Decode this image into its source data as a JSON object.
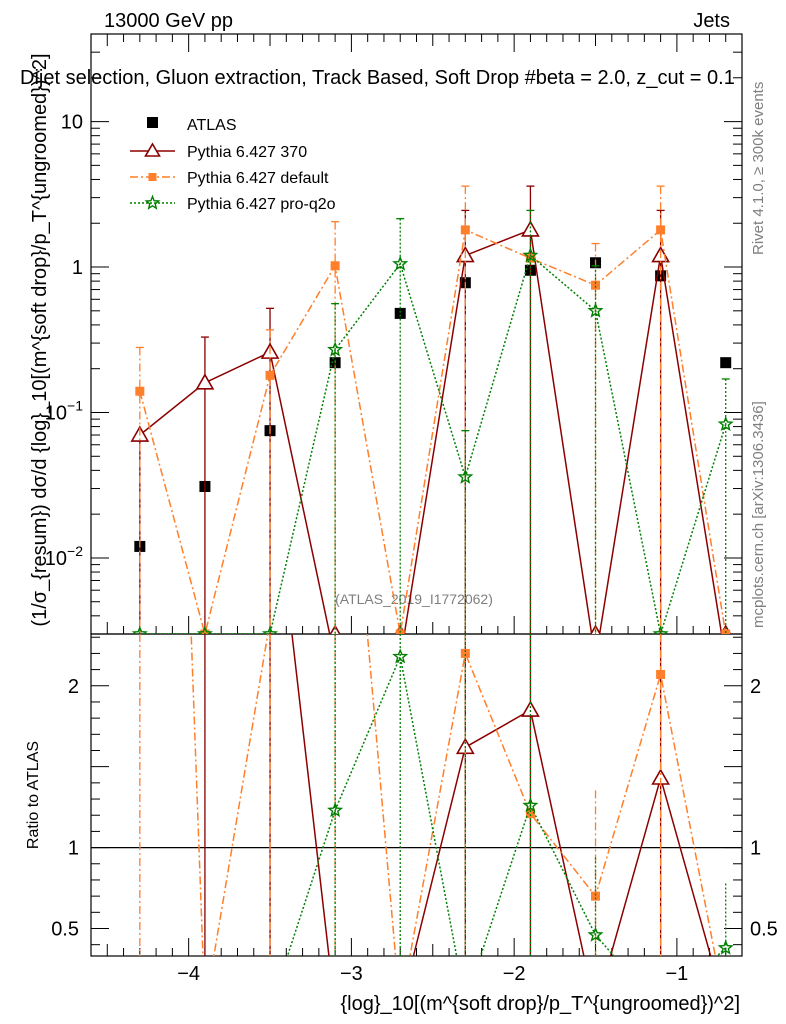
{
  "header": {
    "energy_label": "13000 GeV pp",
    "process_label": "Jets",
    "title": "Dijet selection, Gluon extraction, Track Based, Soft Drop #beta = 2.0, z_cut = 0.1",
    "watermark_analysis": "(ATLAS_2019_I1772062)",
    "side_rivet": "Rivet 4.1.0, ≥ 300k events",
    "side_mcplots": "mcplots.cern.ch [arXiv:1306.3436]"
  },
  "colors": {
    "atlas": "#000000",
    "p370": "#8b0000",
    "pdefault": "#ff7f2a",
    "pq2o": "#008000",
    "gray": "#7f7f7f"
  },
  "chart_data": {
    "type": "scatter",
    "xlabel": "{log}_10[(m^{soft drop}/p_T^{ungroomed})^2]",
    "ylabel_main": "(1/σ_{resum}) dσ/d {log}_10[(m^{soft drop}/p_T^{ungroomed})^2]",
    "ylabel_ratio": "Ratio to ATLAS",
    "xlim": [
      -4.6,
      -0.6
    ],
    "ylim_main": [
      0.003,
      40
    ],
    "ylim_ratio": [
      0.33,
      2.32
    ],
    "yscale_main": "log",
    "x_ticks": [
      -4,
      -3,
      -2,
      -1
    ],
    "x_tick_labels": [
      "−4",
      "−3",
      "−2",
      "−1"
    ],
    "y_main_ticks": [
      {
        "value": 10,
        "label": "10"
      },
      {
        "value": 1,
        "label": "1"
      },
      {
        "value": 0.1,
        "label": "10^-1"
      },
      {
        "value": 0.01,
        "label": "10^-2"
      }
    ],
    "y_ratio_ticks": [
      {
        "value": 2,
        "label": "2"
      },
      {
        "value": 1,
        "label": "1"
      },
      {
        "value": 0.5,
        "label": "0.5"
      }
    ],
    "x": [
      -4.3,
      -3.9,
      -3.5,
      -3.1,
      -2.7,
      -2.3,
      -1.9,
      -1.5,
      -1.1,
      -0.7
    ],
    "series": [
      {
        "key": "atlas",
        "name": "ATLAS",
        "style": "square-marker",
        "values": [
          0.012,
          0.031,
          0.075,
          0.22,
          0.48,
          0.78,
          0.95,
          1.07,
          0.87,
          0.22
        ]
      },
      {
        "key": "p370",
        "name": "Pythia 6.427 370",
        "style": "solid-open-triangle",
        "values": [
          0.07,
          0.16,
          0.26,
          0.0001,
          0.0001,
          1.2,
          1.8,
          0.0001,
          1.2,
          0.0001
        ],
        "err_up": [
          null,
          0.33,
          0.52,
          null,
          null,
          2.45,
          3.6,
          null,
          2.45,
          null
        ],
        "err_down": [
          0.001,
          0.001,
          0.001,
          null,
          null,
          0.001,
          0.001,
          null,
          0.001,
          null
        ],
        "ratio": [
          5.8,
          5.2,
          3.5,
          0.0001,
          0.0001,
          1.62,
          1.85,
          0.0001,
          1.43,
          0.0001
        ]
      },
      {
        "key": "pdefault",
        "name": "Pythia 6.427 default",
        "style": "dashdot-square",
        "values": [
          0.14,
          0.003,
          0.18,
          1.02,
          0.003,
          1.8,
          1.15,
          0.75,
          1.8,
          0.003
        ],
        "err_up": [
          0.28,
          null,
          0.37,
          2.05,
          null,
          3.6,
          null,
          1.45,
          3.6,
          null
        ],
        "err_down": [
          0.001,
          null,
          0.001,
          0.001,
          null,
          0.001,
          null,
          0.001,
          0.001,
          null
        ],
        "ratio": [
          11.0,
          0.0001,
          2.4,
          4.6,
          0.0001,
          2.2,
          1.21,
          0.7,
          2.07,
          0.0001
        ]
      },
      {
        "key": "pq2o",
        "name": "Pythia 6.427 pro-q2o",
        "style": "dotted-star",
        "values": [
          0.003,
          0.003,
          0.003,
          0.27,
          1.05,
          0.036,
          1.2,
          0.5,
          0.003,
          0.083
        ],
        "err_up": [
          null,
          null,
          null,
          0.56,
          2.15,
          0.075,
          2.45,
          1.02,
          null,
          0.17
        ],
        "err_down": [
          null,
          null,
          null,
          0.001,
          0.001,
          0.001,
          0.001,
          0.001,
          null,
          0.001
        ],
        "ratio": [
          0.0001,
          0.0001,
          0.0001,
          1.23,
          2.18,
          0.046,
          1.26,
          0.46,
          0.0001,
          0.38
        ]
      }
    ],
    "atlas_err_up": [
      null,
      null,
      null,
      null,
      null,
      null,
      null,
      null,
      null,
      null
    ]
  }
}
